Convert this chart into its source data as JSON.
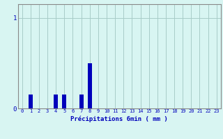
{
  "hours": [
    0,
    1,
    2,
    3,
    4,
    5,
    6,
    7,
    8,
    9,
    10,
    11,
    12,
    13,
    14,
    15,
    16,
    17,
    18,
    19,
    20,
    21,
    22,
    23
  ],
  "values": [
    0,
    0.15,
    0,
    0,
    0.15,
    0.15,
    0,
    0.15,
    0.5,
    0,
    0,
    0,
    0,
    0,
    0,
    0,
    0,
    0,
    0,
    0,
    0,
    0,
    0,
    0
  ],
  "bar_color": "#0000bb",
  "bg_color": "#d8f5f2",
  "grid_color": "#a8ccc8",
  "axis_color": "#888888",
  "text_color": "#0000bb",
  "xlabel": "Précipitations 6min ( mm )",
  "ylim": [
    0,
    1.15
  ],
  "yticks": [
    0,
    1
  ],
  "ytick_labels": [
    "0",
    "1"
  ],
  "xlim": [
    -0.5,
    23.5
  ],
  "bar_width": 0.5,
  "tick_labels": [
    "0",
    "1",
    "2",
    "3",
    "4",
    "5",
    "6",
    "7",
    "8",
    "9",
    "10",
    "11",
    "12",
    "13",
    "14",
    "15",
    "16",
    "17",
    "18",
    "19",
    "20",
    "21",
    "22",
    "23"
  ]
}
